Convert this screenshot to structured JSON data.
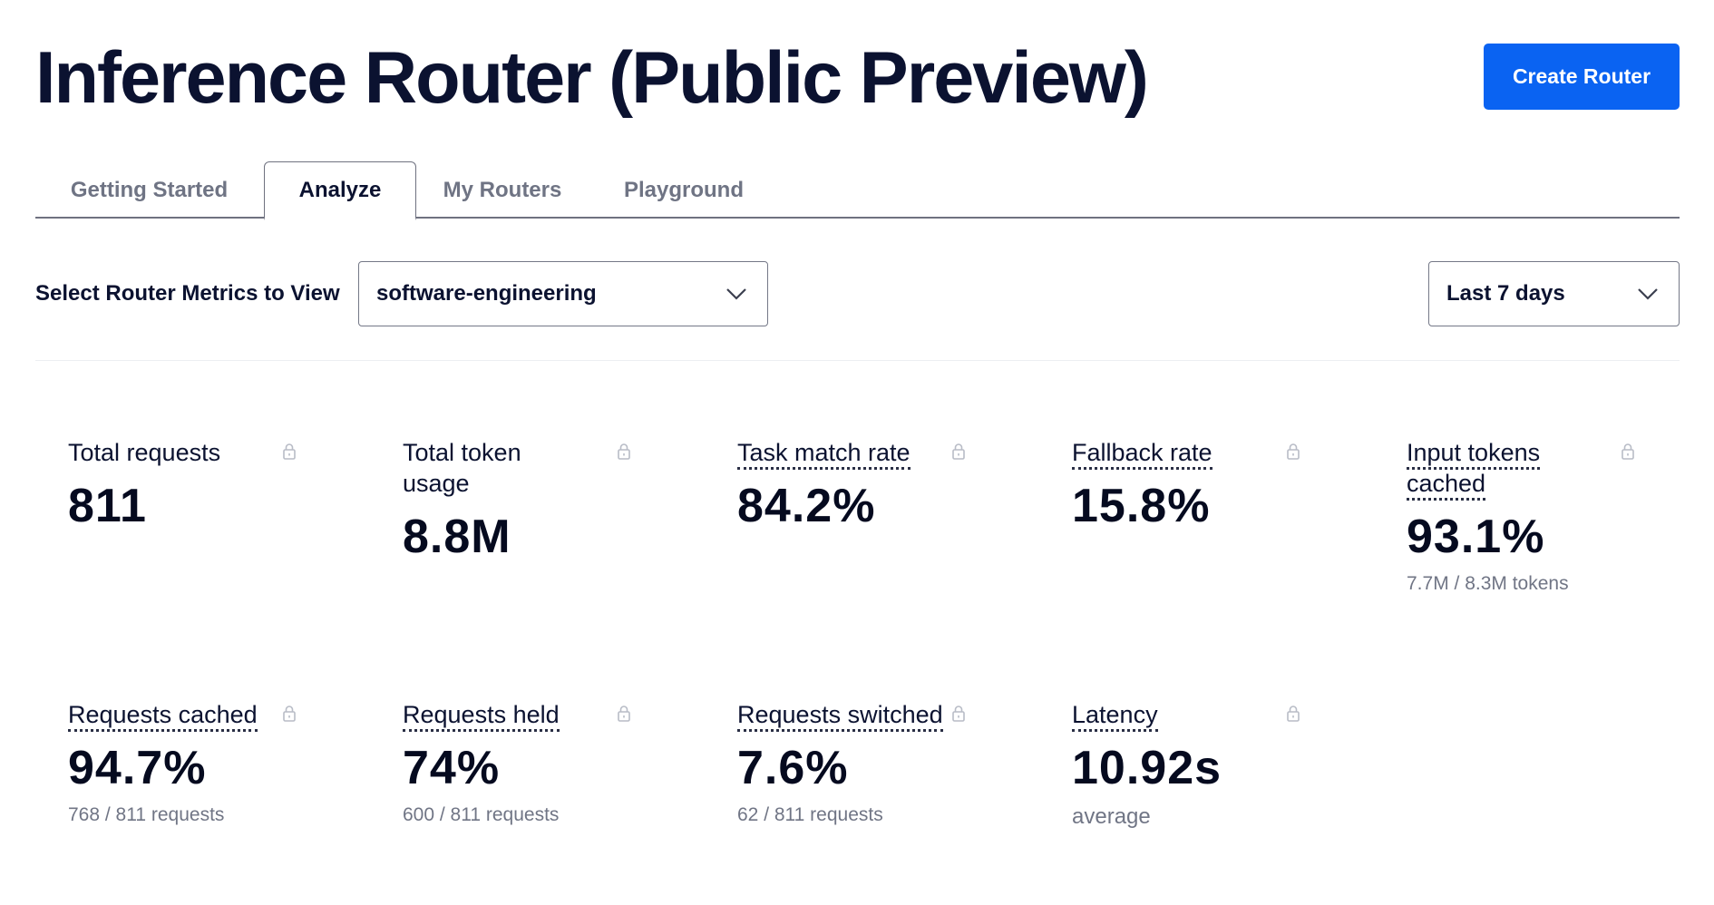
{
  "header": {
    "title": "Inference Router (Public Preview)",
    "create_button": "Create Router"
  },
  "tabs": [
    {
      "label": "Getting Started",
      "active": false
    },
    {
      "label": "Analyze",
      "active": true
    },
    {
      "label": "My Routers",
      "active": false
    },
    {
      "label": "Playground",
      "active": false
    }
  ],
  "filters": {
    "label": "Select Router Metrics to View",
    "router_select": "software-engineering",
    "range_select": "Last 7 days"
  },
  "metrics": [
    {
      "label": "Total requests",
      "value": "811",
      "sub": "",
      "tooltip": false
    },
    {
      "label": "Total token usage",
      "value": "8.8M",
      "sub": "",
      "tooltip": false
    },
    {
      "label": "Task match rate",
      "value": "84.2%",
      "sub": "",
      "tooltip": true
    },
    {
      "label": "Fallback rate",
      "value": "15.8%",
      "sub": "",
      "tooltip": true
    },
    {
      "label": "Input tokens cached",
      "value": "93.1%",
      "sub": "7.7M / 8.3M tokens",
      "tooltip": true
    },
    {
      "label": "Requests cached",
      "value": "94.7%",
      "sub": "768 / 811 requests",
      "tooltip": true
    },
    {
      "label": "Requests held",
      "value": "74%",
      "sub": "600 / 811 requests",
      "tooltip": true
    },
    {
      "label": "Requests switched",
      "value": "7.6%",
      "sub": "62 / 811 requests",
      "tooltip": true
    },
    {
      "label": "Latency",
      "value": "10.92s",
      "sub": "average",
      "tooltip": true
    }
  ],
  "colors": {
    "accent": "#0a63f2",
    "title": "#0b1230",
    "muted": "#707585"
  },
  "icons": {
    "dropdown": "chevron-down-icon",
    "card_lock": "lock-icon"
  }
}
